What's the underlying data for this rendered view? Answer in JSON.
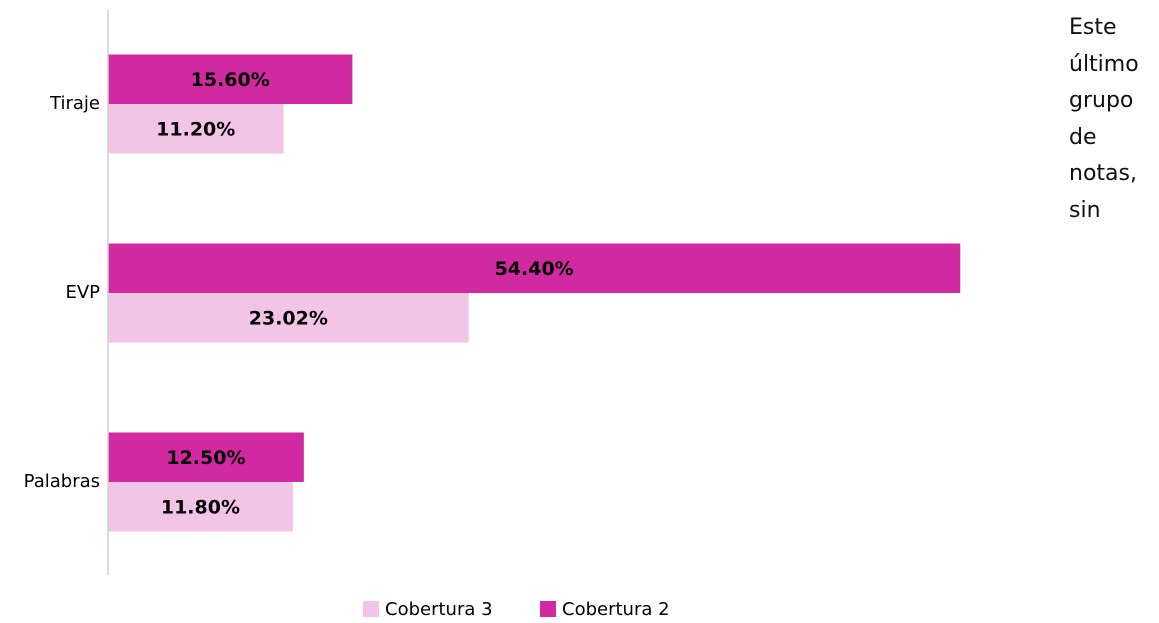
{
  "chart_data": {
    "type": "barh",
    "categories": [
      "Tiraje",
      "EVP",
      "Palabras"
    ],
    "series": [
      {
        "name": "Cobertura 3",
        "color": "#f2c4e6",
        "values": [
          11.2,
          23.02,
          11.8
        ],
        "value_labels": [
          "11.20%",
          "23.02%",
          "11.80%"
        ]
      },
      {
        "name": "Cobertura 2",
        "color": "#d12aa0",
        "values": [
          15.6,
          54.4,
          12.5
        ],
        "value_labels": [
          "15.60%",
          "54.40%",
          "12.50%"
        ]
      }
    ],
    "xlim": [
      0,
      60
    ],
    "legend": "bottom"
  },
  "side_text": "Este último grupo de notas, sin"
}
